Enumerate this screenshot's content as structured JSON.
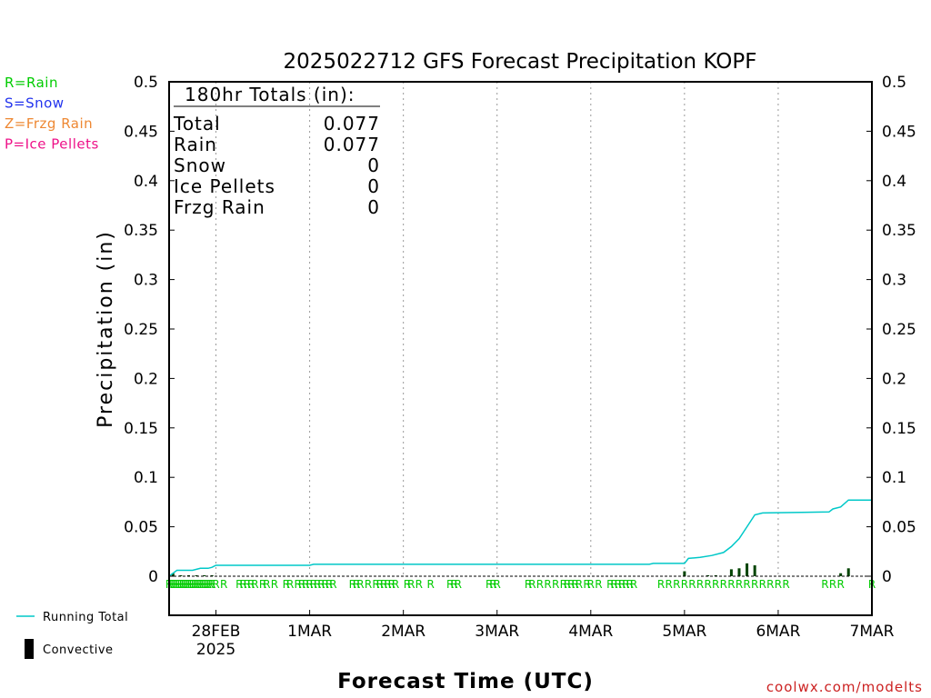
{
  "chart_data": {
    "type": "line",
    "title": "2025022712 GFS Forecast Precipitation KOPF",
    "xlabel": "Forecast Time (UTC)",
    "ylabel": "Precipitation (in)",
    "ylim": [
      0,
      0.5
    ],
    "y_ticks": [
      "0",
      "0.05",
      "0.1",
      "0.15",
      "0.2",
      "0.25",
      "0.3",
      "0.35",
      "0.4",
      "0.45",
      "0.5"
    ],
    "y_tick_values": [
      0,
      0.05,
      0.1,
      0.15,
      0.2,
      0.25,
      0.3,
      0.35,
      0.4,
      0.45,
      0.5
    ],
    "xlim_hours": [
      0,
      180
    ],
    "x_ticks": [
      {
        "hour": 12,
        "label": "28FEB",
        "sublabel": "2025"
      },
      {
        "hour": 36,
        "label": "1MAR",
        "sublabel": ""
      },
      {
        "hour": 60,
        "label": "2MAR",
        "sublabel": ""
      },
      {
        "hour": 84,
        "label": "3MAR",
        "sublabel": ""
      },
      {
        "hour": 108,
        "label": "4MAR",
        "sublabel": ""
      },
      {
        "hour": 132,
        "label": "5MAR",
        "sublabel": ""
      },
      {
        "hour": 156,
        "label": "6MAR",
        "sublabel": ""
      },
      {
        "hour": 180,
        "label": "7MAR",
        "sublabel": ""
      }
    ],
    "grid": "vertical-dotted",
    "series": [
      {
        "name": "Running Total",
        "color": "#00c8c8",
        "points": [
          [
            0,
            0
          ],
          [
            1,
            0.003
          ],
          [
            2,
            0.006
          ],
          [
            6,
            0.006
          ],
          [
            7,
            0.007
          ],
          [
            8,
            0.008
          ],
          [
            10,
            0.008
          ],
          [
            11,
            0.009
          ],
          [
            12,
            0.011
          ],
          [
            36,
            0.011
          ],
          [
            37,
            0.012
          ],
          [
            123,
            0.012
          ],
          [
            124,
            0.013
          ],
          [
            132,
            0.013
          ],
          [
            133,
            0.018
          ],
          [
            136,
            0.019
          ],
          [
            139,
            0.021
          ],
          [
            142,
            0.024
          ],
          [
            144,
            0.03
          ],
          [
            146,
            0.038
          ],
          [
            148,
            0.05
          ],
          [
            150,
            0.062
          ],
          [
            152,
            0.064
          ],
          [
            169,
            0.065
          ],
          [
            170,
            0.068
          ],
          [
            172,
            0.07
          ],
          [
            174,
            0.077
          ],
          [
            180,
            0.077
          ]
        ]
      },
      {
        "name": "Convective",
        "color": "#004400",
        "bars": [
          [
            1,
            0.003
          ],
          [
            3,
            0.001
          ],
          [
            5,
            0.001
          ],
          [
            7,
            0.001
          ],
          [
            9,
            0.001
          ],
          [
            11,
            0.001
          ],
          [
            132,
            0.005
          ],
          [
            138,
            0.001
          ],
          [
            140,
            0.001
          ],
          [
            144,
            0.007
          ],
          [
            146,
            0.008
          ],
          [
            148,
            0.013
          ],
          [
            150,
            0.011
          ],
          [
            172,
            0.003
          ],
          [
            174,
            0.008
          ]
        ]
      }
    ],
    "precip_type_markers": {
      "glyph": "R",
      "hours": [
        0,
        0.5,
        1,
        1.5,
        2,
        2.5,
        3,
        3.5,
        4,
        4.5,
        5,
        5.5,
        6,
        6.5,
        7,
        7.5,
        8,
        8.5,
        9,
        9.5,
        10,
        10.5,
        11,
        12,
        14,
        18,
        19,
        20,
        21,
        22,
        24,
        25,
        27,
        30,
        31,
        33,
        34,
        35,
        36,
        37,
        38,
        39,
        40,
        41,
        42,
        47,
        48,
        49,
        51,
        53,
        54,
        55,
        56,
        57,
        58,
        61,
        62,
        64,
        67,
        72,
        73,
        74,
        82,
        83,
        84,
        92,
        93,
        95,
        97,
        99,
        101,
        102,
        103,
        104,
        105,
        107,
        108,
        110,
        113,
        114,
        115,
        116,
        117,
        118,
        119,
        126,
        128,
        130,
        132,
        134,
        136,
        138,
        140,
        142,
        144,
        146,
        148,
        150,
        152,
        154,
        156,
        158,
        168,
        170,
        172,
        180
      ]
    },
    "precip_types": [
      {
        "label": "R=Rain",
        "color": "#00cc00"
      },
      {
        "label": "S=Snow",
        "color": "#2233ee"
      },
      {
        "label": "Z=Frzg Rain",
        "color": "#ee8833"
      },
      {
        "label": "P=Ice Pellets",
        "color": "#ee1188"
      }
    ],
    "totals": {
      "header": "180hr Totals (in):",
      "rows": [
        {
          "label": "Total",
          "value": "0.077"
        },
        {
          "label": "Rain",
          "value": "0.077"
        },
        {
          "label": "Snow",
          "value": "0"
        },
        {
          "label": "Ice Pellets",
          "value": "0"
        },
        {
          "label": "Frzg Rain",
          "value": "0"
        }
      ]
    },
    "legend": [
      {
        "label": "Running Total",
        "color": "#00c8c8",
        "kind": "line"
      },
      {
        "label": "Convective",
        "color": "#000000",
        "kind": "bar"
      }
    ],
    "credit": "coolwx.com/modelts"
  }
}
